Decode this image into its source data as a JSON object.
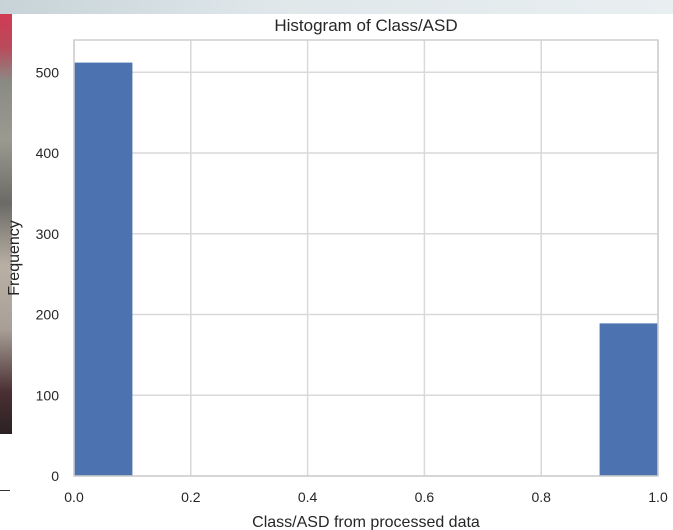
{
  "chart_data": {
    "type": "bar",
    "title": "Histogram of Class/ASD",
    "xlabel": "Class/ASD from processed data",
    "ylabel": "Frequency",
    "xlim": [
      0.0,
      1.0
    ],
    "ylim": [
      0,
      540
    ],
    "grid": true,
    "bars": [
      {
        "x0": 0.0,
        "x1": 0.1,
        "value": 512
      },
      {
        "x0": 0.9,
        "x1": 1.0,
        "value": 189
      }
    ],
    "x_ticks": [
      {
        "value": 0.0,
        "label": "0.0"
      },
      {
        "value": 0.2,
        "label": "0.2"
      },
      {
        "value": 0.4,
        "label": "0.4"
      },
      {
        "value": 0.6,
        "label": "0.6"
      },
      {
        "value": 0.8,
        "label": "0.8"
      },
      {
        "value": 1.0,
        "label": "1.0"
      }
    ],
    "y_ticks": [
      {
        "value": 0,
        "label": "0"
      },
      {
        "value": 100,
        "label": "100"
      },
      {
        "value": 200,
        "label": "200"
      },
      {
        "value": 300,
        "label": "300"
      },
      {
        "value": 400,
        "label": "400"
      },
      {
        "value": 500,
        "label": "500"
      }
    ],
    "bar_color": "#4c72b0"
  }
}
